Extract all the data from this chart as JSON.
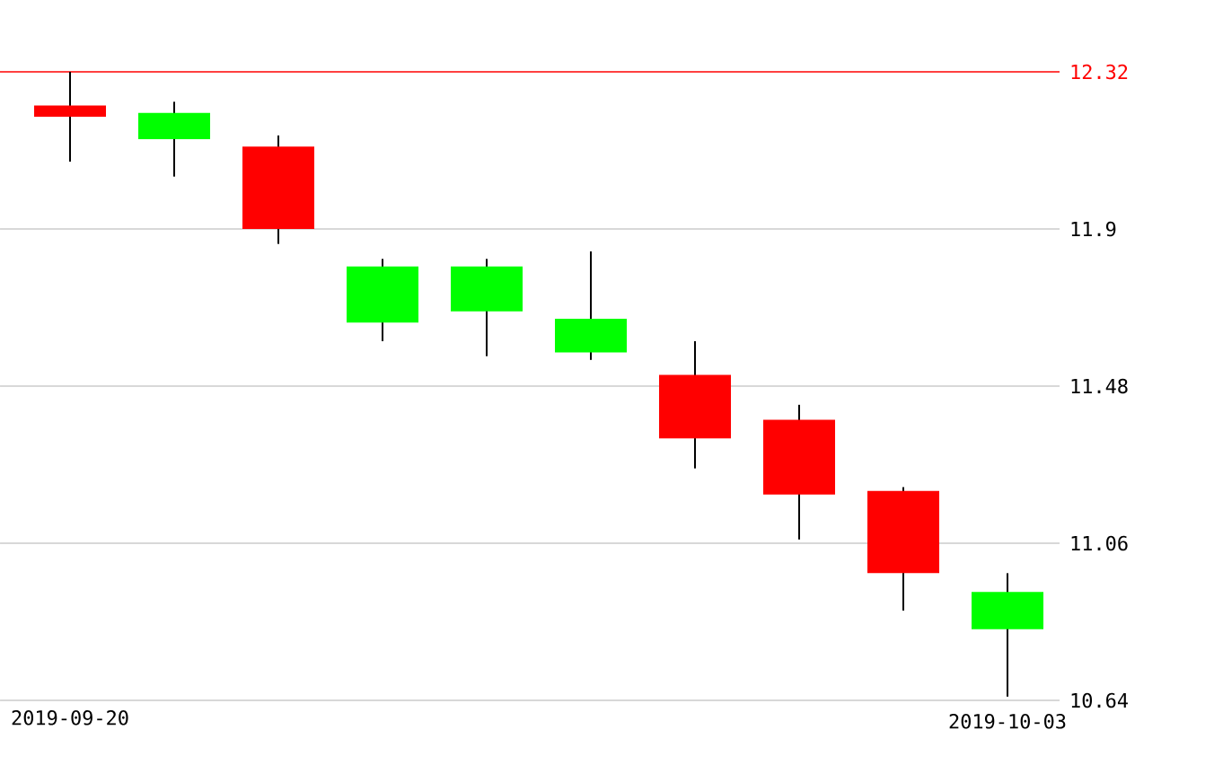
{
  "chart_data": {
    "type": "candlestick",
    "categories": [
      "2019-09-20",
      null,
      null,
      null,
      null,
      null,
      null,
      null,
      null,
      "2019-10-03"
    ],
    "ohlc": [
      [
        12.23,
        12.32,
        12.08,
        12.2
      ],
      [
        12.14,
        12.24,
        12.04,
        12.21
      ],
      [
        12.12,
        12.15,
        11.86,
        11.9
      ],
      [
        11.65,
        11.82,
        11.6,
        11.8
      ],
      [
        11.68,
        11.82,
        11.56,
        11.8
      ],
      [
        11.57,
        11.84,
        11.55,
        11.66
      ],
      [
        11.51,
        11.6,
        11.26,
        11.34
      ],
      [
        11.39,
        11.43,
        11.07,
        11.19
      ],
      [
        11.2,
        11.21,
        10.88,
        10.98
      ],
      [
        10.83,
        10.98,
        10.65,
        10.93
      ]
    ],
    "colors": [
      "#ff0000",
      "#00ff00",
      "#ff0000",
      "#00ff00",
      "#00ff00",
      "#00ff00",
      "#ff0000",
      "#ff0000",
      "#ff0000",
      "#00ff00"
    ],
    "ylim": [
      10.64,
      12.32
    ],
    "yticks": [
      10.64,
      11.06,
      11.48,
      11.9
    ],
    "grid": "y",
    "ref_lines": [
      {
        "axis": "y",
        "value": 12.32,
        "label": "12.32",
        "color": "#ff0000"
      }
    ]
  }
}
